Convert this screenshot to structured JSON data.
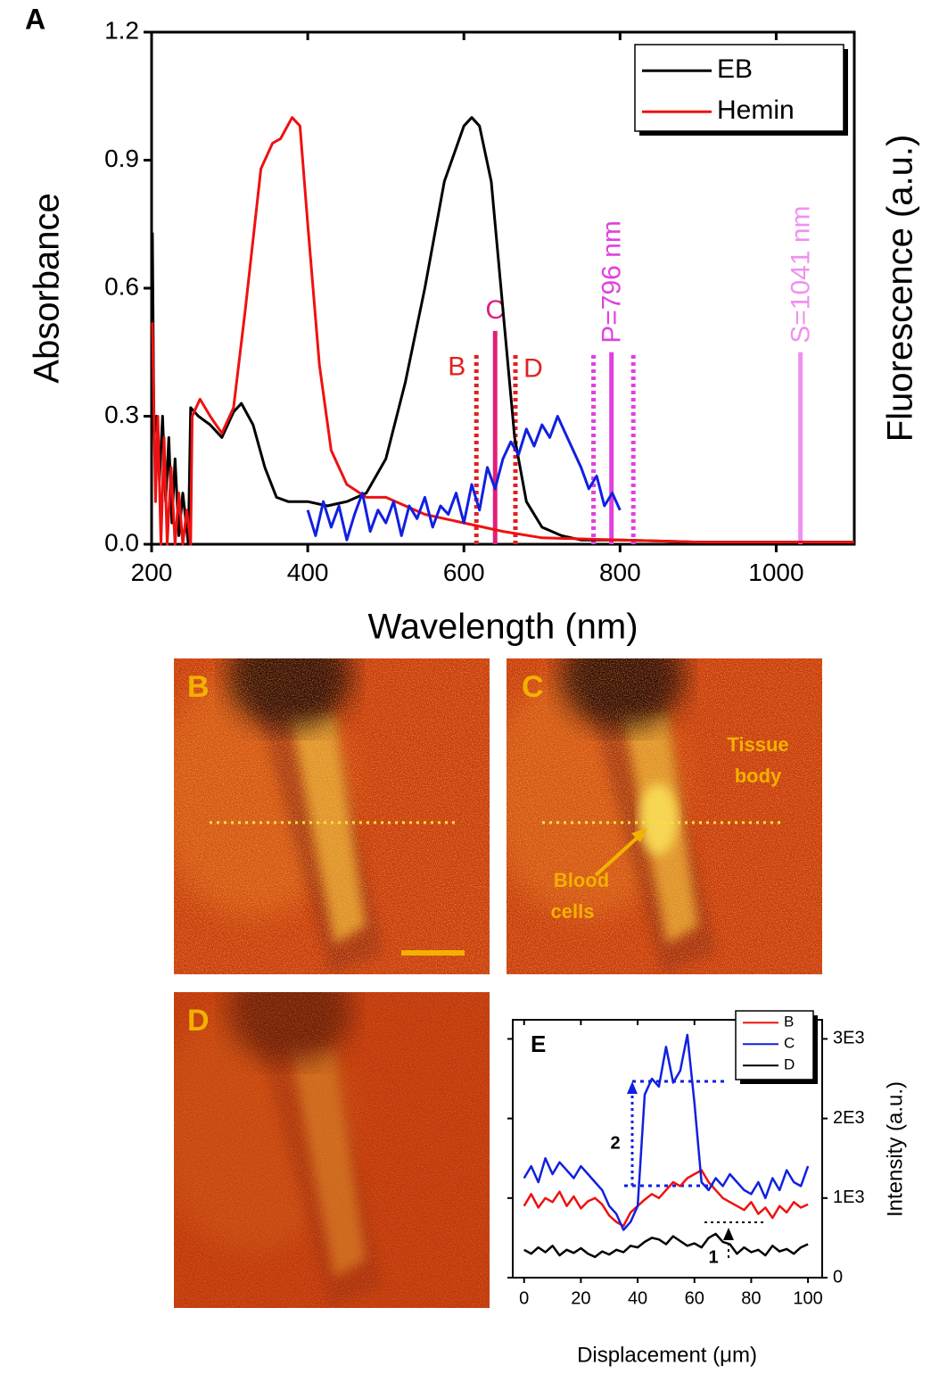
{
  "chart_data": [
    {
      "type": "line",
      "panel_label": "A",
      "x_label": "Wavelength (nm)",
      "y_label": "Absorbance",
      "y2_label": "Fluorescence (a.u.)",
      "xlim": [
        200,
        1100
      ],
      "ylim": [
        0,
        1.2
      ],
      "xticks": [
        200,
        400,
        600,
        800,
        1000
      ],
      "yticks": [
        {
          "value": 0,
          "label": "0.0"
        },
        0.3,
        0.6,
        0.9,
        1.2
      ],
      "legend": "upper right",
      "series": [
        {
          "name": "EB",
          "color": "#000000",
          "x": [
            201,
            203,
            206,
            210,
            214,
            218,
            222,
            226,
            230,
            235,
            240,
            247,
            250,
            260,
            275,
            290,
            305,
            315,
            330,
            345,
            360,
            375,
            400,
            425,
            450,
            475,
            500,
            525,
            550,
            575,
            600,
            610,
            620,
            635,
            650,
            665,
            680,
            700,
            725,
            750,
            800,
            900,
            1000,
            1100
          ],
          "values": [
            0.73,
            0.28,
            0.3,
            0.15,
            0.3,
            0.1,
            0.25,
            0.05,
            0.2,
            0.02,
            0.12,
            0.0,
            0.32,
            0.3,
            0.28,
            0.25,
            0.31,
            0.33,
            0.28,
            0.18,
            0.11,
            0.1,
            0.1,
            0.09,
            0.1,
            0.12,
            0.2,
            0.38,
            0.6,
            0.85,
            0.98,
            1.0,
            0.98,
            0.85,
            0.55,
            0.25,
            0.1,
            0.04,
            0.02,
            0.01,
            0.01,
            0.005,
            0.005,
            0.005
          ]
        },
        {
          "name": "Hemin",
          "color": "#ee1111",
          "x": [
            201,
            205,
            208,
            212,
            216,
            220,
            225,
            230,
            235,
            240,
            245,
            250,
            252,
            262,
            275,
            290,
            305,
            320,
            340,
            355,
            365,
            380,
            390,
            400,
            415,
            430,
            450,
            475,
            500,
            525,
            550,
            575,
            600,
            625,
            650,
            700,
            800,
            900,
            1000,
            1100
          ],
          "values": [
            0.52,
            0.1,
            0.3,
            0.0,
            0.25,
            0.0,
            0.18,
            0.0,
            0.12,
            0.0,
            0.08,
            0.0,
            0.3,
            0.34,
            0.3,
            0.26,
            0.32,
            0.55,
            0.88,
            0.94,
            0.95,
            1.0,
            0.98,
            0.75,
            0.42,
            0.22,
            0.14,
            0.11,
            0.11,
            0.09,
            0.07,
            0.06,
            0.05,
            0.04,
            0.03,
            0.015,
            0.01,
            0.005,
            0.005,
            0.005
          ]
        },
        {
          "color": "#1020e0",
          "x": [
            400,
            410,
            420,
            430,
            440,
            450,
            460,
            470,
            480,
            490,
            500,
            510,
            520,
            530,
            540,
            550,
            560,
            570,
            580,
            590,
            600,
            610,
            620,
            630,
            640,
            650,
            660,
            670,
            680,
            690,
            700,
            710,
            720,
            730,
            740,
            750,
            760,
            770,
            780,
            790,
            800
          ],
          "values": [
            0.08,
            0.02,
            0.1,
            0.04,
            0.09,
            0.01,
            0.07,
            0.12,
            0.03,
            0.08,
            0.05,
            0.1,
            0.02,
            0.09,
            0.06,
            0.11,
            0.04,
            0.09,
            0.07,
            0.12,
            0.05,
            0.14,
            0.08,
            0.18,
            0.13,
            0.2,
            0.24,
            0.21,
            0.27,
            0.23,
            0.28,
            0.25,
            0.3,
            0.26,
            0.22,
            0.18,
            0.13,
            0.16,
            0.09,
            0.12,
            0.08
          ]
        }
      ],
      "markers": [
        {
          "x": 616,
          "top": 0.45,
          "color": "#e02020",
          "style": "dotted",
          "label": "B"
        },
        {
          "x": 640,
          "top": 0.5,
          "color": "#e0207a",
          "style": "solid",
          "label": "C"
        },
        {
          "x": 666,
          "top": 0.45,
          "color": "#e02020",
          "style": "dotted",
          "label": "D"
        },
        {
          "x": 766,
          "top": 0.45,
          "color": "#e040e0",
          "style": "dotted"
        },
        {
          "x": 789,
          "top": 0.45,
          "color": "#e040e0",
          "style": "solid",
          "label": "P=796 nm"
        },
        {
          "x": 817,
          "top": 0.45,
          "color": "#e040e0",
          "style": "dotted"
        },
        {
          "x": 1031,
          "top": 0.45,
          "color": "#f090f0",
          "style": "solid",
          "label": "S=1041 nm"
        }
      ]
    },
    {
      "type": "line",
      "panel_label": "E",
      "x_label": "Displacement (μm)",
      "y_label": "Intensity (a.u.)",
      "xlim": [
        -4,
        105
      ],
      "ylim": [
        0,
        3240
      ],
      "xticks": [
        0,
        20,
        40,
        60,
        80,
        100
      ],
      "yticks": [
        0,
        {
          "value": 1000,
          "label": "1E3"
        },
        {
          "value": 2000,
          "label": "2E3"
        },
        {
          "value": 3000,
          "label": "3E3"
        }
      ],
      "legend": "upper right",
      "x": [
        0,
        2.5,
        5,
        7.5,
        10,
        12.5,
        15,
        17.5,
        20,
        22.5,
        25,
        27.5,
        30,
        32.5,
        35,
        37.5,
        40,
        42.5,
        45,
        47.5,
        50,
        52.5,
        55,
        57.5,
        60,
        62.5,
        65,
        67.5,
        70,
        72.5,
        75,
        77.5,
        80,
        82.5,
        85,
        87.5,
        90,
        92.5,
        95,
        97.5,
        100
      ],
      "series": [
        {
          "name": "B",
          "color": "#ee1111",
          "values": [
            900,
            1050,
            880,
            1000,
            950,
            1080,
            900,
            1020,
            870,
            960,
            1000,
            920,
            780,
            700,
            650,
            820,
            900,
            980,
            1050,
            1000,
            1100,
            1200,
            1150,
            1250,
            1300,
            1350,
            1200,
            1100,
            1000,
            950,
            900,
            850,
            950,
            800,
            880,
            750,
            900,
            820,
            950,
            880,
            920
          ]
        },
        {
          "name": "C",
          "color": "#1020e0",
          "values": [
            1250,
            1400,
            1200,
            1500,
            1300,
            1450,
            1350,
            1250,
            1400,
            1300,
            1200,
            1100,
            900,
            800,
            600,
            700,
            900,
            2300,
            2500,
            2400,
            2900,
            2450,
            2600,
            3050,
            2200,
            1200,
            1100,
            1250,
            1150,
            1300,
            1200,
            1100,
            1050,
            1200,
            1000,
            1250,
            1100,
            1350,
            1200,
            1150,
            1400
          ]
        },
        {
          "name": "D",
          "color": "#000000",
          "values": [
            350,
            300,
            380,
            320,
            400,
            280,
            350,
            310,
            370,
            300,
            260,
            330,
            290,
            350,
            320,
            400,
            380,
            450,
            500,
            480,
            420,
            520,
            460,
            400,
            430,
            380,
            500,
            550,
            450,
            420,
            300,
            380,
            320,
            350,
            280,
            400,
            330,
            360,
            300,
            380,
            420
          ]
        }
      ],
      "annotations": [
        "2",
        "1"
      ]
    }
  ],
  "panels": [
    {
      "label": "B"
    },
    {
      "label": "C",
      "annotations": [
        "Tissue",
        "body",
        "Blood",
        "cells"
      ]
    },
    {
      "label": "D"
    }
  ]
}
